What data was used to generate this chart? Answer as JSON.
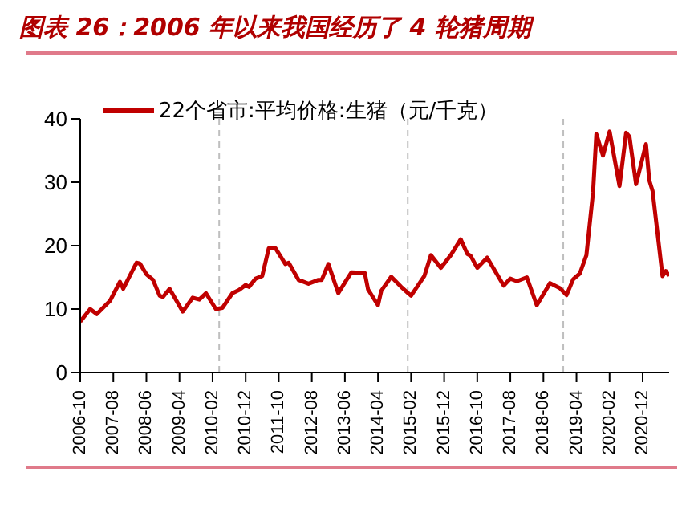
{
  "chart_data": {
    "type": "line",
    "title": "图表 26：2006 年以来我国经历了 4 轮猪周期",
    "x": [
      "2006-10",
      "2007-01",
      "2007-03",
      "2007-07",
      "2007-10",
      "2007-11",
      "2008-03",
      "2008-04",
      "2008-06",
      "2008-08",
      "2008-10",
      "2008-11",
      "2009-01",
      "2009-05",
      "2009-08",
      "2009-10",
      "2009-12",
      "2010-03",
      "2010-05",
      "2010-08",
      "2010-10",
      "2010-12",
      "2011-01",
      "2011-03",
      "2011-05",
      "2011-07",
      "2011-09",
      "2011-12",
      "2012-01",
      "2012-04",
      "2012-07",
      "2012-10",
      "2012-11",
      "2013-01",
      "2013-04",
      "2013-06",
      "2013-08",
      "2013-12",
      "2014-01",
      "2014-04",
      "2014-05",
      "2014-08",
      "2014-11",
      "2015-02",
      "2015-06",
      "2015-08",
      "2015-11",
      "2016-02",
      "2016-05",
      "2016-07",
      "2016-08",
      "2016-10",
      "2017-01",
      "2017-06",
      "2017-08",
      "2017-10",
      "2018-01",
      "2018-04",
      "2018-08",
      "2018-11",
      "2019-01",
      "2019-03",
      "2019-05",
      "2019-07",
      "2019-09",
      "2019-10",
      "2019-12",
      "2020-02",
      "2020-05",
      "2020-07",
      "2020-08",
      "2020-10",
      "2021-01",
      "2021-02",
      "2021-03",
      "2021-06",
      "2021-07",
      "2021-08"
    ],
    "series": [
      {
        "name": "22个省市:平均价格:生猪（元/千克）",
        "color": "#c00000",
        "values": [
          8,
          10,
          9.2,
          11.3,
          14.3,
          13.2,
          17.3,
          17.2,
          15.5,
          14.6,
          12.1,
          11.9,
          13.2,
          9.6,
          11.8,
          11.5,
          12.5,
          10,
          10.2,
          12.5,
          13,
          13.8,
          13.5,
          14.8,
          15.2,
          19.6,
          19.6,
          17.1,
          17.3,
          14.6,
          14,
          14.6,
          14.6,
          17.1,
          12.5,
          14.2,
          15.8,
          15.7,
          13.1,
          10.6,
          12.9,
          15.1,
          13.5,
          12.1,
          15.2,
          18.5,
          16.5,
          18.5,
          21,
          18.7,
          18.4,
          16.5,
          18.1,
          13.7,
          14.8,
          14.4,
          15,
          10.6,
          14.1,
          13.3,
          12.2,
          14.7,
          15.6,
          18.5,
          28.4,
          37.6,
          34.2,
          38,
          29.4,
          37.8,
          37.2,
          29.7,
          36,
          30.3,
          28.6,
          15.2,
          16,
          15.2
        ]
      }
    ],
    "xlim": [
      "2006-10",
      "2021-08"
    ],
    "xticks": [
      "2006-10",
      "2007-08",
      "2008-06",
      "2009-04",
      "2010-02",
      "2010-12",
      "2011-10",
      "2012-08",
      "2013-06",
      "2014-04",
      "2015-02",
      "2015-12",
      "2016-10",
      "2017-08",
      "2018-06",
      "2019-04",
      "2020-02",
      "2020-12"
    ],
    "ylim": [
      0,
      40
    ],
    "yticks": [
      0,
      10,
      20,
      30,
      40
    ],
    "ref_lines": [
      {
        "axis": "x",
        "value": "2010-04",
        "color": "#bfbfbf",
        "line_style": "dashed"
      },
      {
        "axis": "x",
        "value": "2015-01",
        "color": "#bfbfbf",
        "line_style": "dashed"
      },
      {
        "axis": "x",
        "value": "2018-12",
        "color": "#bfbfbf",
        "line_style": "dashed"
      }
    ],
    "grid": false,
    "legend": "top left",
    "marker": "none",
    "line_style": "solid"
  }
}
